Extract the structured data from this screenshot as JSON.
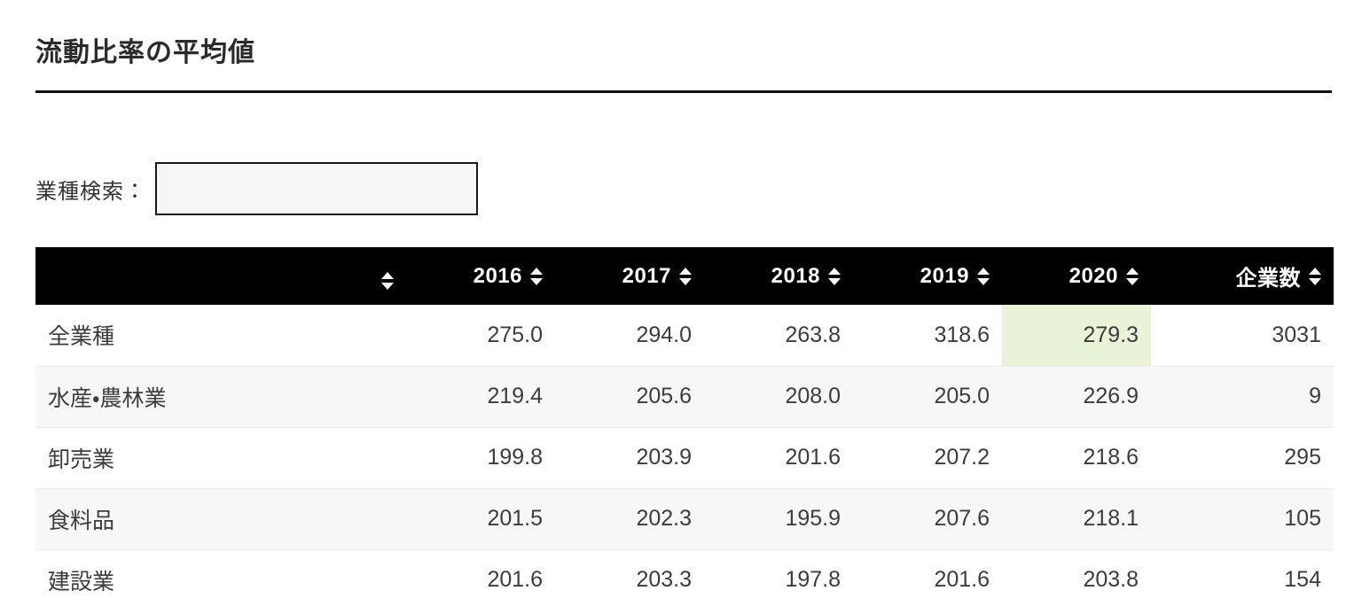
{
  "page": {
    "title": "流動比率の平均値"
  },
  "search": {
    "label": "業種検索：",
    "value": "",
    "placeholder": ""
  },
  "table": {
    "columns": [
      {
        "key": "industry",
        "label": ""
      },
      {
        "key": "2016",
        "label": "2016"
      },
      {
        "key": "2017",
        "label": "2017"
      },
      {
        "key": "2018",
        "label": "2018"
      },
      {
        "key": "2019",
        "label": "2019"
      },
      {
        "key": "2020",
        "label": "2020"
      },
      {
        "key": "companies",
        "label": "企業数"
      }
    ],
    "rows": [
      {
        "industry": "全業種",
        "values": [
          "275.0",
          "294.0",
          "263.8",
          "318.6",
          "279.3",
          "3031"
        ]
      },
      {
        "industry": "水産・農林業",
        "values": [
          "219.4",
          "205.6",
          "208.0",
          "205.0",
          "226.9",
          "9"
        ]
      },
      {
        "industry": "卸売業",
        "values": [
          "199.8",
          "203.9",
          "201.6",
          "207.2",
          "218.6",
          "295"
        ]
      },
      {
        "industry": "食料品",
        "values": [
          "201.5",
          "202.3",
          "195.9",
          "207.6",
          "218.1",
          "105"
        ]
      },
      {
        "industry": "建設業",
        "values": [
          "201.6",
          "203.3",
          "197.8",
          "201.6",
          "203.8",
          "154"
        ]
      }
    ],
    "highlight": {
      "row": 0,
      "column": "2020",
      "color": "#e9f3d8"
    }
  },
  "colors": {
    "header_bg": "#000000",
    "header_text": "#ffffff",
    "row_alt_bg": "#f7f7f7",
    "title_underline": "#111111"
  }
}
